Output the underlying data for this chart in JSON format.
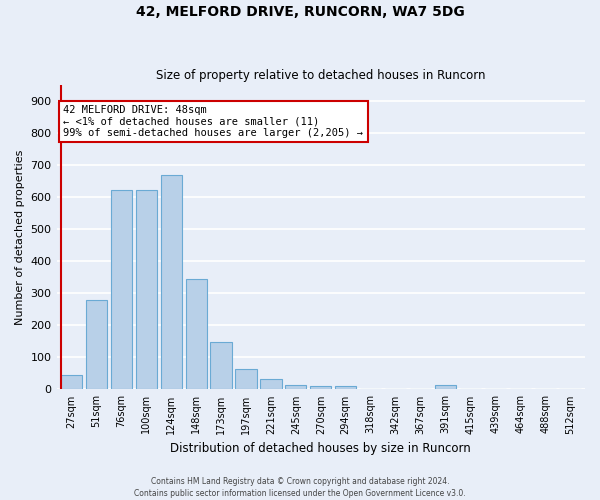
{
  "title1": "42, MELFORD DRIVE, RUNCORN, WA7 5DG",
  "title2": "Size of property relative to detached houses in Runcorn",
  "xlabel": "Distribution of detached houses by size in Runcorn",
  "ylabel": "Number of detached properties",
  "categories": [
    "27sqm",
    "51sqm",
    "76sqm",
    "100sqm",
    "124sqm",
    "148sqm",
    "173sqm",
    "197sqm",
    "221sqm",
    "245sqm",
    "270sqm",
    "294sqm",
    "318sqm",
    "342sqm",
    "367sqm",
    "391sqm",
    "415sqm",
    "439sqm",
    "464sqm",
    "488sqm",
    "512sqm"
  ],
  "values": [
    46,
    280,
    620,
    622,
    668,
    345,
    148,
    65,
    32,
    14,
    11,
    10,
    0,
    0,
    0,
    13,
    0,
    0,
    0,
    0,
    0
  ],
  "bar_color": "#b8d0e8",
  "bar_edge_color": "#6aaad4",
  "highlight_line_color": "#cc0000",
  "annotation_text": "42 MELFORD DRIVE: 48sqm\n← <1% of detached houses are smaller (11)\n99% of semi-detached houses are larger (2,205) →",
  "annotation_box_facecolor": "#ffffff",
  "annotation_box_edgecolor": "#cc0000",
  "ylim": [
    0,
    950
  ],
  "yticks": [
    0,
    100,
    200,
    300,
    400,
    500,
    600,
    700,
    800,
    900
  ],
  "bg_color": "#e8eef8",
  "grid_color": "#ffffff",
  "footer1": "Contains HM Land Registry data © Crown copyright and database right 2024.",
  "footer2": "Contains public sector information licensed under the Open Government Licence v3.0."
}
